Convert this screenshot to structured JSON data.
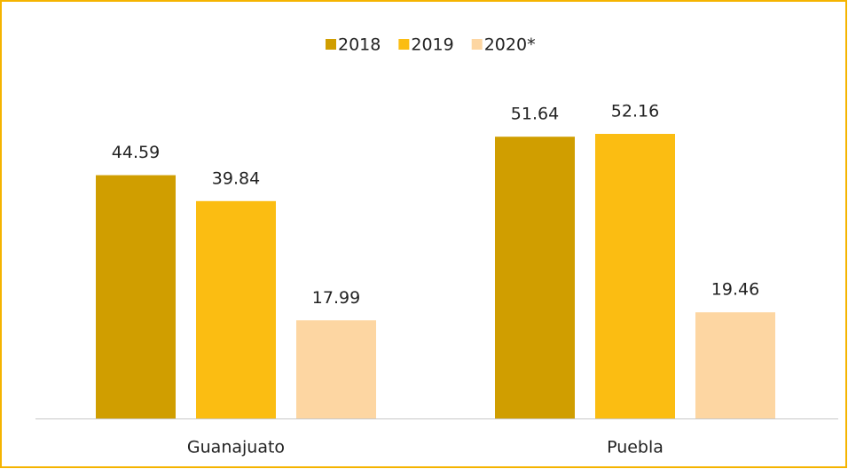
{
  "chart_data": {
    "type": "bar",
    "categories": [
      "Guanajuato",
      "Puebla"
    ],
    "series": [
      {
        "name": "2018",
        "color": "#d09e00",
        "values": [
          44.59,
          51.64
        ]
      },
      {
        "name": "2019",
        "color": "#fbbd12",
        "values": [
          39.84,
          52.16
        ]
      },
      {
        "name": "2020*",
        "color": "#fdd6a2",
        "values": [
          17.99,
          19.46
        ]
      }
    ],
    "legend": "top"
  }
}
